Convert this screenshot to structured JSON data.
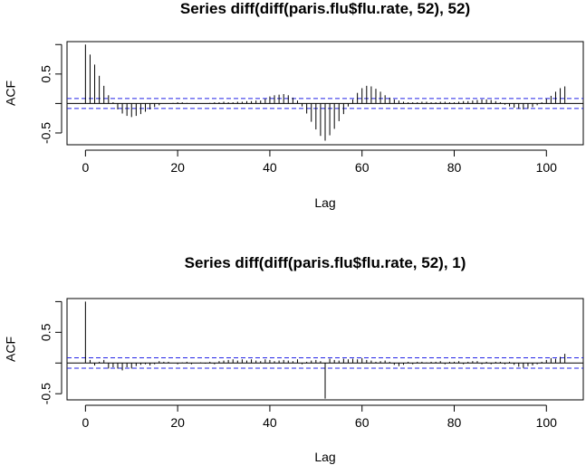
{
  "chart_data": [
    {
      "type": "bar",
      "title": "Series  diff(diff(paris.flu$flu.rate, 52), 52)",
      "xlabel": "Lag",
      "ylabel": "ACF",
      "xlim": [
        -4,
        108
      ],
      "ylim": [
        -0.7,
        1.05
      ],
      "xticks": [
        "0",
        "20",
        "40",
        "60",
        "80",
        "100"
      ],
      "yticks": [
        "-0.5",
        "0.5"
      ],
      "ci": 0.085,
      "x": [
        0,
        1,
        2,
        3,
        4,
        5,
        6,
        7,
        8,
        9,
        10,
        11,
        12,
        13,
        14,
        15,
        16,
        17,
        18,
        19,
        20,
        21,
        22,
        23,
        24,
        25,
        26,
        27,
        28,
        29,
        30,
        31,
        32,
        33,
        34,
        35,
        36,
        37,
        38,
        39,
        40,
        41,
        42,
        43,
        44,
        45,
        46,
        47,
        48,
        49,
        50,
        51,
        52,
        53,
        54,
        55,
        56,
        57,
        58,
        59,
        60,
        61,
        62,
        63,
        64,
        65,
        66,
        67,
        68,
        69,
        70,
        71,
        72,
        73,
        74,
        75,
        76,
        77,
        78,
        79,
        80,
        81,
        82,
        83,
        84,
        85,
        86,
        87,
        88,
        89,
        90,
        91,
        92,
        93,
        94,
        95,
        96,
        97,
        98,
        99,
        100,
        101,
        102,
        103,
        104
      ],
      "values": [
        1.0,
        0.83,
        0.66,
        0.47,
        0.3,
        0.14,
        0.02,
        -0.1,
        -0.17,
        -0.21,
        -0.23,
        -0.21,
        -0.18,
        -0.14,
        -0.1,
        -0.06,
        -0.03,
        0.0,
        0.0,
        0.01,
        0.02,
        0.02,
        0.01,
        0.0,
        -0.01,
        0.0,
        0.0,
        0.01,
        0.02,
        0.02,
        0.03,
        0.02,
        0.02,
        0.03,
        0.03,
        0.04,
        0.04,
        0.05,
        0.05,
        0.08,
        0.12,
        0.14,
        0.15,
        0.16,
        0.14,
        0.1,
        0.05,
        -0.05,
        -0.17,
        -0.31,
        -0.44,
        -0.55,
        -0.63,
        -0.54,
        -0.43,
        -0.3,
        -0.18,
        -0.05,
        0.07,
        0.18,
        0.26,
        0.3,
        0.29,
        0.25,
        0.2,
        0.14,
        0.1,
        0.07,
        0.05,
        0.03,
        0.02,
        0.02,
        0.02,
        0.03,
        0.03,
        0.02,
        0.02,
        0.03,
        0.03,
        0.02,
        0.02,
        0.03,
        0.04,
        0.04,
        0.05,
        0.06,
        0.07,
        0.07,
        0.06,
        0.04,
        0.02,
        -0.02,
        -0.05,
        -0.07,
        -0.09,
        -0.1,
        -0.09,
        -0.06,
        -0.03,
        0.02,
        0.08,
        0.13,
        0.2,
        0.26,
        0.29
      ]
    },
    {
      "type": "bar",
      "title": "Series  diff(diff(paris.flu$flu.rate, 52), 1)",
      "xlabel": "Lag",
      "ylabel": "ACF",
      "xlim": [
        -4,
        108
      ],
      "ylim": [
        -0.6,
        1.05
      ],
      "xticks": [
        "0",
        "20",
        "40",
        "60",
        "80",
        "100"
      ],
      "yticks": [
        "-0.5",
        "0.5"
      ],
      "ci": 0.085,
      "x": [
        0,
        1,
        2,
        3,
        4,
        5,
        6,
        7,
        8,
        9,
        10,
        11,
        12,
        13,
        14,
        15,
        16,
        17,
        18,
        19,
        20,
        21,
        22,
        23,
        24,
        25,
        26,
        27,
        28,
        29,
        30,
        31,
        32,
        33,
        34,
        35,
        36,
        37,
        38,
        39,
        40,
        41,
        42,
        43,
        44,
        45,
        46,
        47,
        48,
        49,
        50,
        51,
        52,
        53,
        54,
        55,
        56,
        57,
        58,
        59,
        60,
        61,
        62,
        63,
        64,
        65,
        66,
        67,
        68,
        69,
        70,
        71,
        72,
        73,
        74,
        75,
        76,
        77,
        78,
        79,
        80,
        81,
        82,
        83,
        84,
        85,
        86,
        87,
        88,
        89,
        90,
        91,
        92,
        93,
        94,
        95,
        96,
        97,
        98,
        99,
        100,
        101,
        102,
        103,
        104
      ],
      "values": [
        1.0,
        0.05,
        -0.04,
        0.02,
        0.05,
        -0.09,
        -0.07,
        -0.09,
        -0.12,
        -0.07,
        -0.09,
        -0.05,
        -0.03,
        -0.02,
        -0.04,
        -0.02,
        0.03,
        0.02,
        0.02,
        0.0,
        -0.02,
        0.01,
        0.02,
        -0.02,
        0.0,
        0.01,
        -0.01,
        0.02,
        -0.02,
        0.03,
        0.04,
        0.05,
        0.06,
        0.04,
        0.06,
        0.04,
        0.06,
        0.04,
        0.03,
        0.06,
        0.05,
        0.03,
        0.04,
        0.05,
        0.04,
        0.03,
        0.06,
        -0.02,
        0.02,
        0.04,
        0.05,
        0.03,
        -0.58,
        0.07,
        0.05,
        0.04,
        0.07,
        0.06,
        0.07,
        0.06,
        0.08,
        0.05,
        0.04,
        0.02,
        0.03,
        0.04,
        0.02,
        -0.03,
        -0.05,
        -0.03,
        0.02,
        -0.02,
        0.02,
        0.02,
        0.01,
        0.02,
        0.02,
        0.03,
        -0.02,
        0.02,
        0.02,
        0.03,
        -0.02,
        0.02,
        0.03,
        0.03,
        -0.02,
        0.02,
        -0.02,
        0.02,
        0.02,
        -0.02,
        0.02,
        -0.03,
        -0.06,
        -0.08,
        -0.05,
        -0.04,
        -0.02,
        0.02,
        0.05,
        0.08,
        0.07,
        0.1,
        0.15
      ]
    }
  ]
}
